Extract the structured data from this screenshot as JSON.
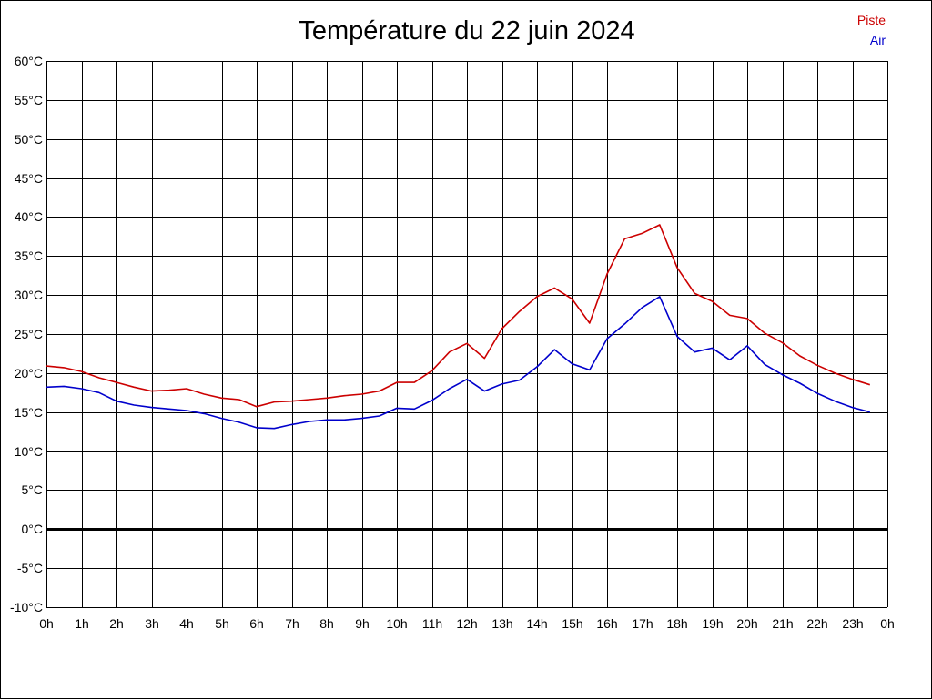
{
  "colors": {
    "background": "#ffffff",
    "grid": "#000000",
    "zero_line": "#000000",
    "piste": "#cc0000",
    "air": "#0000cc"
  },
  "chart_data": {
    "type": "line",
    "title": "Température du 22 juin 2024",
    "xlabel": "",
    "ylabel": "",
    "x_unit": "hour of day",
    "xlim": [
      0,
      24
    ],
    "ylim": [
      -10,
      60
    ],
    "grid": true,
    "legend_position": "top-right",
    "x_ticks": [
      0,
      1,
      2,
      3,
      4,
      5,
      6,
      7,
      8,
      9,
      10,
      11,
      12,
      13,
      14,
      15,
      16,
      17,
      18,
      19,
      20,
      21,
      22,
      23,
      24
    ],
    "x_tick_labels": [
      "0h",
      "1h",
      "2h",
      "3h",
      "4h",
      "5h",
      "6h",
      "7h",
      "8h",
      "9h",
      "10h",
      "11h",
      "12h",
      "13h",
      "14h",
      "15h",
      "16h",
      "17h",
      "18h",
      "19h",
      "20h",
      "21h",
      "22h",
      "23h",
      "0h"
    ],
    "y_ticks": [
      -10,
      -5,
      0,
      5,
      10,
      15,
      20,
      25,
      30,
      35,
      40,
      45,
      50,
      55,
      60
    ],
    "y_tick_labels": [
      "-10°C",
      "-5°C",
      "0°C",
      "5°C",
      "10°C",
      "15°C",
      "20°C",
      "25°C",
      "30°C",
      "35°C",
      "40°C",
      "45°C",
      "50°C",
      "55°C",
      "60°C"
    ],
    "x": [
      0,
      0.5,
      1,
      1.5,
      2,
      2.5,
      3,
      3.5,
      4,
      4.5,
      5,
      5.5,
      6,
      6.5,
      7,
      7.5,
      8,
      8.5,
      9,
      9.5,
      10,
      10.5,
      11,
      11.5,
      12,
      12.5,
      13,
      13.5,
      14,
      14.5,
      15,
      15.5,
      16,
      16.5,
      17,
      17.5,
      18,
      18.5,
      19,
      19.5,
      20,
      20.5,
      21,
      21.5,
      22,
      22.5,
      23,
      23.5
    ],
    "series": [
      {
        "name": "Piste",
        "color": "#cc0000",
        "values": [
          20.9,
          20.7,
          20.2,
          19.4,
          18.8,
          18.2,
          17.7,
          17.8,
          18.0,
          17.3,
          16.8,
          16.6,
          15.7,
          16.3,
          16.4,
          16.6,
          16.8,
          17.1,
          17.3,
          17.7,
          18.8,
          18.8,
          20.3,
          22.7,
          23.8,
          21.9,
          25.7,
          27.9,
          29.8,
          30.9,
          29.5,
          26.4,
          32.7,
          37.2,
          37.9,
          39.0,
          33.5,
          30.2,
          29.2,
          27.4,
          27.0,
          25.1,
          23.9,
          22.2,
          21.0,
          20.0,
          19.2,
          18.5
        ]
      },
      {
        "name": "Air",
        "color": "#0000cc",
        "values": [
          18.2,
          18.3,
          18.0,
          17.5,
          16.4,
          15.9,
          15.6,
          15.4,
          15.2,
          14.8,
          14.2,
          13.7,
          13.0,
          12.9,
          13.4,
          13.8,
          14.0,
          14.0,
          14.2,
          14.5,
          15.5,
          15.4,
          16.5,
          18.0,
          19.2,
          17.7,
          18.6,
          19.1,
          20.8,
          23.0,
          21.2,
          20.4,
          24.4,
          26.3,
          28.4,
          29.8,
          24.7,
          22.7,
          23.2,
          21.7,
          23.5,
          21.1,
          19.8,
          18.7,
          17.4,
          16.4,
          15.6,
          15.0
        ]
      }
    ]
  }
}
